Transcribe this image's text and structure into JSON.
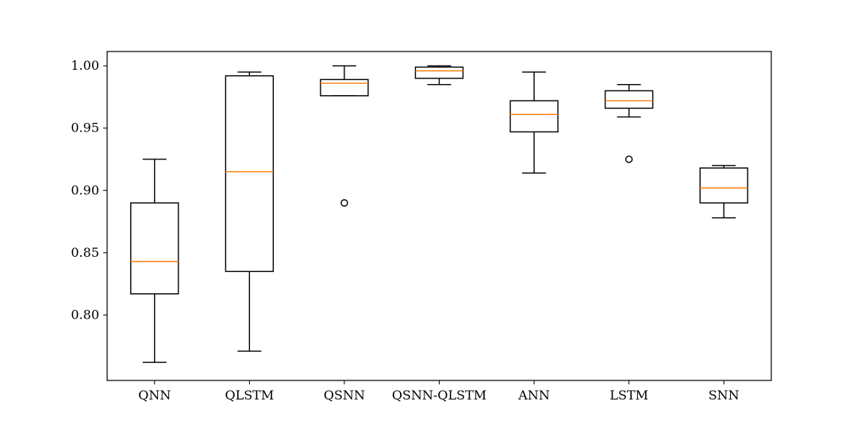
{
  "chart_data": {
    "type": "boxplot",
    "title": "",
    "xlabel": "",
    "ylabel": "",
    "ylim": [
      0.7475,
      1.0115
    ],
    "yticks": [
      "0.80",
      "0.85",
      "0.90",
      "0.95",
      "1.00"
    ],
    "ytick_values": [
      0.8,
      0.85,
      0.9,
      0.95,
      1.0
    ],
    "grid": false,
    "colors": {
      "box": "#000000",
      "median": "#ff7f0e",
      "background": "#ffffff"
    },
    "categories": [
      "QNN",
      "QLSTM",
      "QSNN",
      "QSNN-QLSTM",
      "ANN",
      "LSTM",
      "SNN"
    ],
    "boxes": [
      {
        "whisker_low": 0.762,
        "q1": 0.817,
        "median": 0.843,
        "q3": 0.89,
        "whisker_high": 0.925,
        "outliers": []
      },
      {
        "whisker_low": 0.771,
        "q1": 0.835,
        "median": 0.915,
        "q3": 0.992,
        "whisker_high": 0.995,
        "outliers": []
      },
      {
        "whisker_low": 0.976,
        "q1": 0.976,
        "median": 0.986,
        "q3": 0.989,
        "whisker_high": 1.0,
        "outliers": [
          0.89
        ]
      },
      {
        "whisker_low": 0.985,
        "q1": 0.99,
        "median": 0.996,
        "q3": 0.999,
        "whisker_high": 1.0,
        "outliers": []
      },
      {
        "whisker_low": 0.914,
        "q1": 0.947,
        "median": 0.961,
        "q3": 0.972,
        "whisker_high": 0.995,
        "outliers": []
      },
      {
        "whisker_low": 0.959,
        "q1": 0.966,
        "median": 0.972,
        "q3": 0.98,
        "whisker_high": 0.985,
        "outliers": [
          0.925
        ]
      },
      {
        "whisker_low": 0.878,
        "q1": 0.89,
        "median": 0.902,
        "q3": 0.918,
        "whisker_high": 0.92,
        "outliers": []
      }
    ]
  }
}
